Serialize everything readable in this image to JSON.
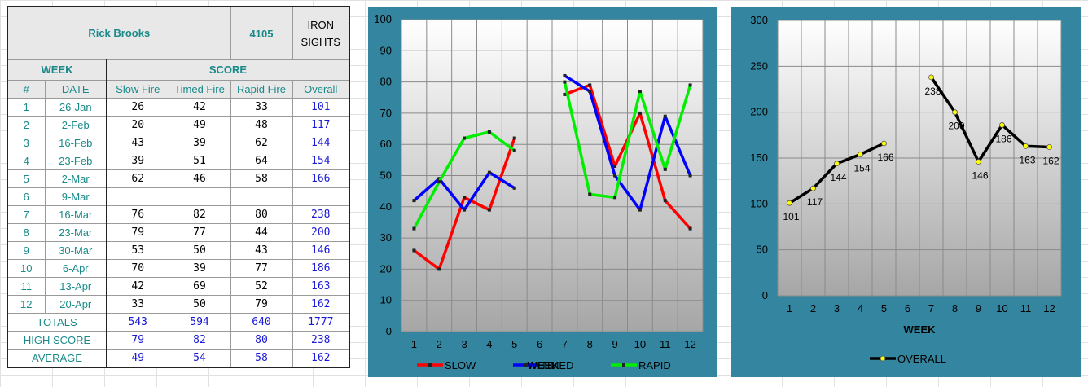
{
  "header": {
    "shooter_name": "Rick Brooks",
    "shooter_number": "4105",
    "category_line1": "IRON",
    "category_line2": "SIGHTS"
  },
  "sections": {
    "week": "WEEK",
    "score": "SCORE"
  },
  "columns": [
    "#",
    "DATE",
    "Slow Fire",
    "Timed Fire",
    "Rapid Fire",
    "Overall"
  ],
  "rows": [
    {
      "n": "1",
      "date": "26-Jan",
      "slow": "26",
      "timed": "42",
      "rapid": "33",
      "overall": "101"
    },
    {
      "n": "2",
      "date": "2-Feb",
      "slow": "20",
      "timed": "49",
      "rapid": "48",
      "overall": "117"
    },
    {
      "n": "3",
      "date": "16-Feb",
      "slow": "43",
      "timed": "39",
      "rapid": "62",
      "overall": "144"
    },
    {
      "n": "4",
      "date": "23-Feb",
      "slow": "39",
      "timed": "51",
      "rapid": "64",
      "overall": "154"
    },
    {
      "n": "5",
      "date": "2-Mar",
      "slow": "62",
      "timed": "46",
      "rapid": "58",
      "overall": "166"
    },
    {
      "n": "6",
      "date": "9-Mar",
      "slow": "",
      "timed": "",
      "rapid": "",
      "overall": ""
    },
    {
      "n": "7",
      "date": "16-Mar",
      "slow": "76",
      "timed": "82",
      "rapid": "80",
      "overall": "238"
    },
    {
      "n": "8",
      "date": "23-Mar",
      "slow": "79",
      "timed": "77",
      "rapid": "44",
      "overall": "200"
    },
    {
      "n": "9",
      "date": "30-Mar",
      "slow": "53",
      "timed": "50",
      "rapid": "43",
      "overall": "146"
    },
    {
      "n": "10",
      "date": "6-Apr",
      "slow": "70",
      "timed": "39",
      "rapid": "77",
      "overall": "186"
    },
    {
      "n": "11",
      "date": "13-Apr",
      "slow": "42",
      "timed": "69",
      "rapid": "52",
      "overall": "163"
    },
    {
      "n": "12",
      "date": "20-Apr",
      "slow": "33",
      "timed": "50",
      "rapid": "79",
      "overall": "162"
    }
  ],
  "summary": [
    {
      "label": "TOTALS",
      "slow": "543",
      "timed": "594",
      "rapid": "640",
      "overall": "1777"
    },
    {
      "label": "HIGH SCORE",
      "slow": "79",
      "timed": "82",
      "rapid": "80",
      "overall": "238"
    },
    {
      "label": "AVERAGE",
      "slow": "49",
      "timed": "54",
      "rapid": "58",
      "overall": "162"
    }
  ],
  "chart_data": [
    {
      "type": "line",
      "title": "",
      "xlabel": "WEEK",
      "ylabel": "",
      "categories": [
        1,
        2,
        3,
        4,
        5,
        6,
        7,
        8,
        9,
        10,
        11,
        12
      ],
      "ylim": [
        0,
        100
      ],
      "yticks": [
        0,
        10,
        20,
        30,
        40,
        50,
        60,
        70,
        80,
        90,
        100
      ],
      "grid": true,
      "legend": "bottom",
      "series": [
        {
          "name": "SLOW",
          "color": "#ff0000",
          "values": [
            26,
            20,
            43,
            39,
            62,
            null,
            76,
            79,
            53,
            70,
            42,
            33
          ]
        },
        {
          "name": "TIMED",
          "color": "#0000ff",
          "values": [
            42,
            49,
            39,
            51,
            46,
            null,
            82,
            77,
            50,
            39,
            69,
            50
          ]
        },
        {
          "name": "RAPID",
          "color": "#00ee00",
          "values": [
            33,
            48,
            62,
            64,
            58,
            null,
            80,
            44,
            43,
            77,
            52,
            79
          ]
        }
      ]
    },
    {
      "type": "line",
      "title": "",
      "xlabel": "WEEK",
      "ylabel": "",
      "categories": [
        1,
        2,
        3,
        4,
        5,
        6,
        7,
        8,
        9,
        10,
        11,
        12
      ],
      "ylim": [
        0,
        300
      ],
      "yticks": [
        0,
        50,
        100,
        150,
        200,
        250,
        300
      ],
      "grid": true,
      "legend": "bottom",
      "series": [
        {
          "name": "OVERALL",
          "color": "#000000",
          "marker": "#ffff00",
          "values": [
            101,
            117,
            144,
            154,
            166,
            null,
            238,
            200,
            146,
            186,
            163,
            162
          ]
        }
      ]
    }
  ]
}
